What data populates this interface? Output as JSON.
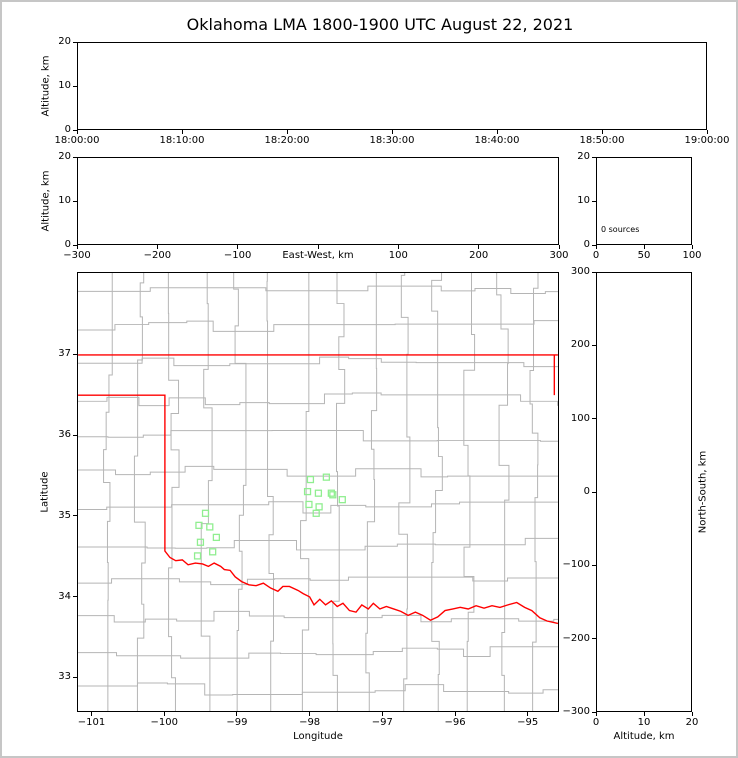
{
  "title": "Oklahoma LMA 1800-1900 UTC August 22, 2021",
  "labels": {
    "altitude_km": "Altitude, km",
    "east_west": "East-West, km",
    "longitude": "Longitude",
    "latitude": "Latitude",
    "north_south": "North-South, km",
    "sources": "0 sources"
  },
  "chart_data": {
    "type": "scatter",
    "title": "Oklahoma LMA 1800-1900 UTC August 22, 2021",
    "source_count": 0,
    "colors": {
      "state_border": "#ff0000",
      "county_border": "#b5b5b5",
      "station_marker": "#90ee90"
    },
    "panels": {
      "time_height": {
        "xticklabels": [
          "18:00:00",
          "18:10:00",
          "18:20:00",
          "18:30:00",
          "18:40:00",
          "18:50:00",
          "19:00:00"
        ],
        "ylabel": "Altitude, km",
        "yticks": [
          0,
          10,
          20
        ],
        "ylim": [
          0,
          20
        ],
        "points": []
      },
      "ew_height": {
        "xlabel": "East-West, km",
        "xticks": [
          -300,
          -200,
          -100,
          0,
          100,
          200,
          300
        ],
        "xlim": [
          -300,
          300
        ],
        "ylabel": "Altitude, km",
        "yticks": [
          0,
          10,
          20
        ],
        "ylim": [
          0,
          20
        ],
        "points": []
      },
      "alt_histogram": {
        "annotation": "0 sources",
        "xticks": [
          0,
          50,
          100
        ],
        "xlim": [
          0,
          100
        ],
        "yticks": [
          0,
          10,
          20
        ],
        "ylim": [
          0,
          20
        ],
        "points": []
      },
      "plan_view": {
        "xlabel": "Longitude",
        "xticks": [
          -101,
          -100,
          -99,
          -98,
          -97,
          -96,
          -95
        ],
        "xlim": [
          -101.2,
          -94.57
        ],
        "ylabel": "Latitude",
        "yticks": [
          33,
          34,
          35,
          36,
          37
        ],
        "ylim": [
          32.57,
          38.02
        ],
        "points": [],
        "county_grid": {
          "v_spacing_deg": 0.455,
          "h_spacing_deg": 0.45,
          "seed": 11
        },
        "lma_stations_lon_lat": [
          [
            -97.99,
            35.45
          ],
          [
            -97.77,
            35.48
          ],
          [
            -98.03,
            35.3
          ],
          [
            -97.88,
            35.28
          ],
          [
            -97.7,
            35.28
          ],
          [
            -98.01,
            35.14
          ],
          [
            -97.87,
            35.11
          ],
          [
            -97.68,
            35.26
          ],
          [
            -97.55,
            35.2
          ],
          [
            -97.91,
            35.03
          ],
          [
            -99.44,
            35.03
          ],
          [
            -99.53,
            34.88
          ],
          [
            -99.38,
            34.86
          ],
          [
            -99.29,
            34.73
          ],
          [
            -99.51,
            34.67
          ],
          [
            -99.34,
            34.55
          ],
          [
            -99.55,
            34.5
          ]
        ],
        "state_border_polylines": [
          [
            [
              -101.2,
              37.0
            ],
            [
              -94.57,
              37.0
            ]
          ],
          [
            [
              -94.62,
              37.0
            ],
            [
              -94.62,
              36.5
            ]
          ],
          [
            [
              -101.2,
              36.5
            ],
            [
              -100.0,
              36.5
            ],
            [
              -100.0,
              34.56
            ],
            [
              -99.93,
              34.48
            ],
            [
              -99.85,
              34.44
            ],
            [
              -99.76,
              34.45
            ],
            [
              -99.68,
              34.39
            ],
            [
              -99.58,
              34.41
            ],
            [
              -99.48,
              34.4
            ],
            [
              -99.4,
              34.37
            ],
            [
              -99.32,
              34.41
            ],
            [
              -99.23,
              34.37
            ],
            [
              -99.18,
              34.33
            ],
            [
              -99.1,
              34.32
            ],
            [
              -99.03,
              34.24
            ],
            [
              -98.94,
              34.18
            ],
            [
              -98.84,
              34.14
            ],
            [
              -98.74,
              34.13
            ],
            [
              -98.64,
              34.16
            ],
            [
              -98.54,
              34.1
            ],
            [
              -98.44,
              34.06
            ],
            [
              -98.37,
              34.12
            ],
            [
              -98.28,
              34.12
            ],
            [
              -98.16,
              34.07
            ],
            [
              -98.09,
              34.03
            ],
            [
              -98.0,
              33.99
            ],
            [
              -97.94,
              33.89
            ],
            [
              -97.86,
              33.96
            ],
            [
              -97.78,
              33.89
            ],
            [
              -97.7,
              33.94
            ],
            [
              -97.62,
              33.87
            ],
            [
              -97.54,
              33.91
            ],
            [
              -97.45,
              33.82
            ],
            [
              -97.36,
              33.8
            ],
            [
              -97.28,
              33.89
            ],
            [
              -97.19,
              33.84
            ],
            [
              -97.12,
              33.91
            ],
            [
              -97.03,
              33.84
            ],
            [
              -96.94,
              33.87
            ],
            [
              -96.84,
              33.84
            ],
            [
              -96.74,
              33.81
            ],
            [
              -96.64,
              33.76
            ],
            [
              -96.54,
              33.8
            ],
            [
              -96.44,
              33.76
            ],
            [
              -96.33,
              33.7
            ],
            [
              -96.23,
              33.74
            ],
            [
              -96.13,
              33.82
            ],
            [
              -96.02,
              33.84
            ],
            [
              -95.92,
              33.86
            ],
            [
              -95.81,
              33.84
            ],
            [
              -95.7,
              33.88
            ],
            [
              -95.59,
              33.85
            ],
            [
              -95.48,
              33.88
            ],
            [
              -95.37,
              33.86
            ],
            [
              -95.26,
              33.89
            ],
            [
              -95.14,
              33.92
            ],
            [
              -95.03,
              33.86
            ],
            [
              -94.93,
              33.82
            ],
            [
              -94.82,
              33.73
            ],
            [
              -94.72,
              33.69
            ],
            [
              -94.57,
              33.66
            ]
          ]
        ]
      },
      "ns_height": {
        "xlabel": "Altitude, km",
        "xticks": [
          0,
          10,
          20
        ],
        "xlim": [
          0,
          20
        ],
        "ylabel": "North-South, km",
        "yticks": [
          300,
          200,
          100,
          0,
          -100,
          -200,
          -300
        ],
        "ylim": [
          -300,
          300
        ],
        "points": []
      }
    }
  }
}
